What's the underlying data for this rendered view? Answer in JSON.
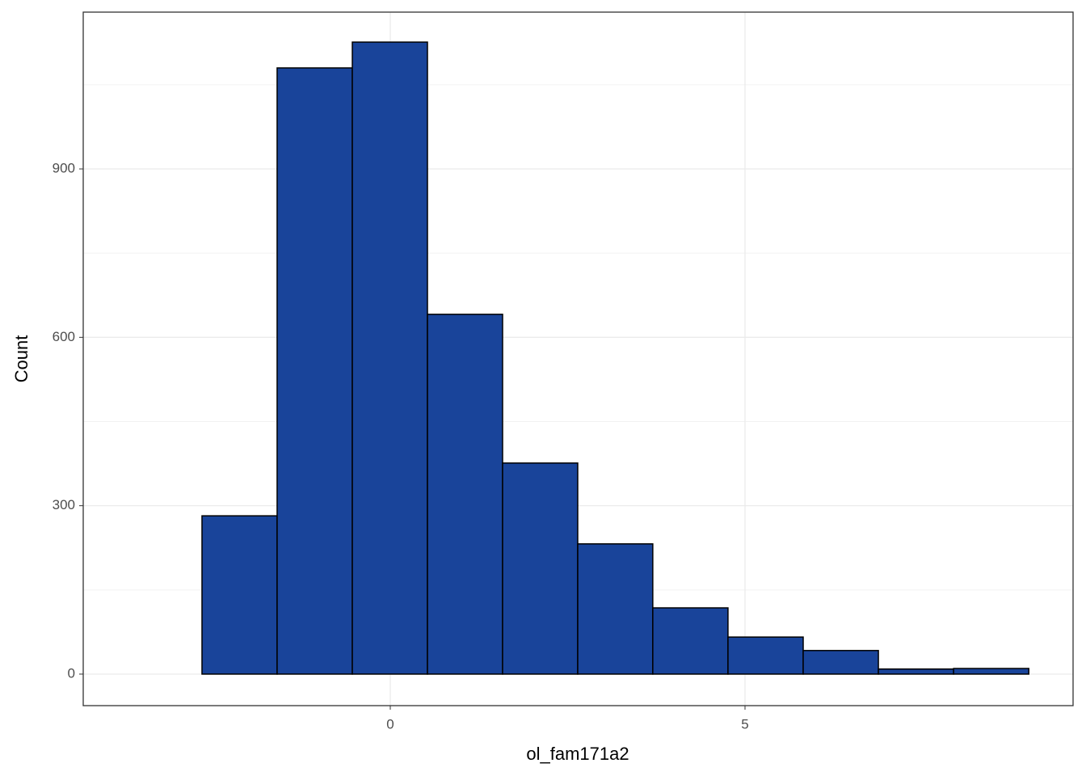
{
  "chart_data": {
    "type": "histogram",
    "x_label": "ol_fam171a2",
    "y_label": "Count",
    "bins": [
      -3.713,
      -2.654,
      -1.595,
      -0.535,
      0.524,
      1.583,
      2.642,
      3.7,
      4.76,
      5.82,
      6.88,
      7.94,
      9.0
    ],
    "values": [
      0,
      282,
      1080,
      1126,
      641,
      376,
      232,
      118,
      66,
      42,
      9,
      10
    ],
    "color": "#19449a",
    "xlim": [
      -4.328,
      9.624
    ],
    "ylim": [
      -56.2,
      1179.4
    ],
    "xticks": [
      0,
      5
    ],
    "yticks": [
      0,
      300,
      600,
      900
    ],
    "grid": true
  }
}
